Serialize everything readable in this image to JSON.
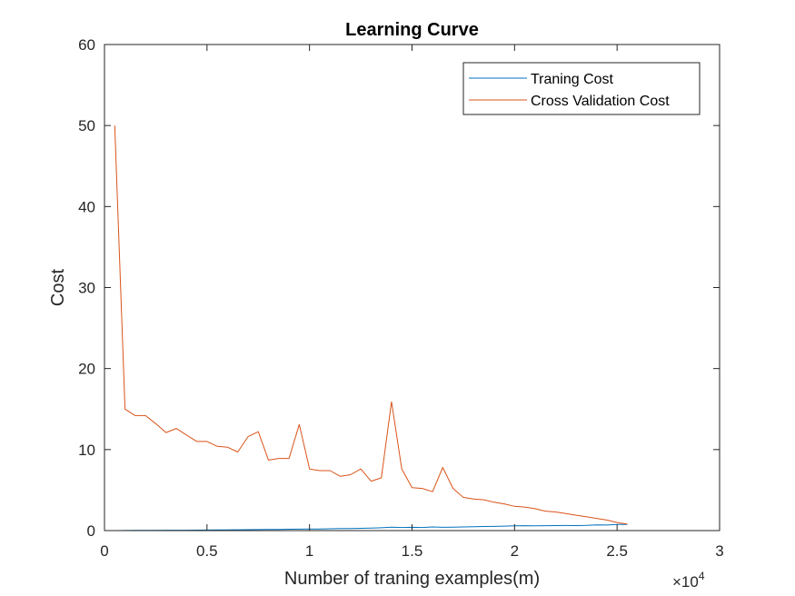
{
  "chart_data": {
    "type": "line",
    "title": "Learning Curve",
    "xlabel": "Number of traning examples(m)",
    "ylabel": "Cost",
    "xlim": [
      0,
      3
    ],
    "ylim": [
      0,
      60
    ],
    "x_ticks": [
      0,
      0.5,
      1,
      1.5,
      2,
      2.5,
      3
    ],
    "x_tick_labels": [
      "0",
      "0.5",
      "1",
      "1.5",
      "2",
      "2.5",
      "3"
    ],
    "y_ticks": [
      0,
      10,
      20,
      30,
      40,
      50,
      60
    ],
    "y_tick_labels": [
      "0",
      "10",
      "20",
      "30",
      "40",
      "50",
      "60"
    ],
    "x_exponent_label": {
      "base": "×10",
      "exp": "4"
    },
    "x": [
      0.05,
      0.1,
      0.15,
      0.2,
      0.25,
      0.3,
      0.35,
      0.4,
      0.45,
      0.5,
      0.55,
      0.6,
      0.65,
      0.7,
      0.75,
      0.8,
      0.85,
      0.9,
      0.95,
      1.0,
      1.05,
      1.1,
      1.15,
      1.2,
      1.25,
      1.3,
      1.35,
      1.4,
      1.45,
      1.5,
      1.55,
      1.6,
      1.65,
      1.7,
      1.75,
      1.8,
      1.85,
      1.9,
      1.95,
      2.0,
      2.05,
      2.1,
      2.15,
      2.2,
      2.25,
      2.3,
      2.35,
      2.4,
      2.45,
      2.5,
      2.55
    ],
    "series": [
      {
        "name": "Traning Cost",
        "color": "#0072BD",
        "values": [
          0.0,
          0.01,
          0.02,
          0.03,
          0.03,
          0.04,
          0.05,
          0.05,
          0.06,
          0.07,
          0.08,
          0.09,
          0.1,
          0.11,
          0.12,
          0.13,
          0.15,
          0.17,
          0.18,
          0.2,
          0.2,
          0.22,
          0.25,
          0.25,
          0.28,
          0.3,
          0.35,
          0.42,
          0.38,
          0.4,
          0.38,
          0.45,
          0.4,
          0.42,
          0.45,
          0.48,
          0.5,
          0.52,
          0.55,
          0.58,
          0.6,
          0.58,
          0.6,
          0.62,
          0.63,
          0.62,
          0.64,
          0.7,
          0.68,
          0.75,
          0.75
        ]
      },
      {
        "name": "Cross Validation Cost",
        "color": "#D95319",
        "values": [
          50.0,
          15.0,
          14.2,
          14.2,
          13.2,
          12.1,
          12.6,
          11.8,
          11.0,
          11.0,
          10.4,
          10.3,
          9.7,
          11.6,
          12.2,
          8.7,
          8.9,
          8.9,
          13.1,
          7.6,
          7.4,
          7.4,
          6.7,
          6.9,
          7.6,
          6.1,
          6.5,
          15.9,
          7.6,
          5.3,
          5.2,
          4.8,
          7.8,
          5.2,
          4.1,
          3.9,
          3.8,
          3.5,
          3.3,
          3.0,
          2.9,
          2.7,
          2.4,
          2.3,
          2.1,
          1.9,
          1.7,
          1.5,
          1.3,
          1.0,
          0.8
        ]
      }
    ],
    "legend": {
      "placement": "top-right",
      "entries": [
        "Traning Cost",
        "Cross Validation Cost"
      ]
    },
    "grid": false
  }
}
